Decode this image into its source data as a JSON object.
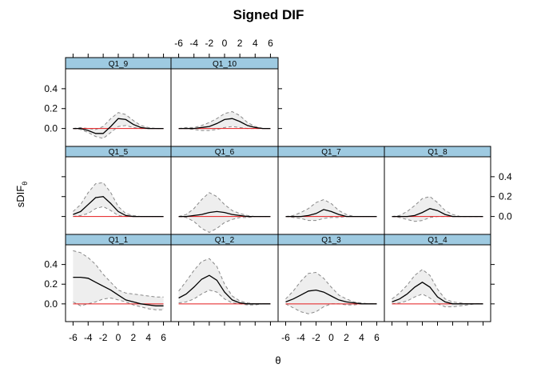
{
  "chart_data": {
    "type": "line",
    "title": "Signed DIF",
    "xlabel": "θ",
    "ylabel": "sDIF",
    "ylabel_subscript": "θ",
    "xlim": [
      -7,
      7
    ],
    "ylim": [
      -0.18,
      0.6
    ],
    "x_ticks": [
      "-6",
      "-4",
      "-2",
      "0",
      "2",
      "4",
      "6"
    ],
    "y_ticks": [
      "0.0",
      "0.2",
      "0.4"
    ],
    "colors": {
      "strip": "#9ECAE1",
      "band": "#EEEEEE",
      "band_line": "#888888",
      "curve": "#000000",
      "zero_line": "#E41A1C"
    },
    "layout": {
      "rows": 3,
      "cols": 4,
      "empty_panels": [
        "top-row col 3",
        "top-row col 4"
      ]
    },
    "panels": [
      {
        "name": "Q1_9",
        "row": 0,
        "col": 0,
        "x": [
          -6,
          -5,
          -4,
          -3,
          -2,
          -1,
          0,
          1,
          2,
          3,
          4,
          5,
          6
        ],
        "values": [
          0.0,
          0.0,
          -0.02,
          -0.05,
          -0.05,
          0.02,
          0.1,
          0.09,
          0.04,
          0.01,
          0.0,
          0.0,
          0.0
        ],
        "lower": [
          0.0,
          -0.01,
          -0.04,
          -0.08,
          -0.1,
          -0.04,
          0.02,
          0.03,
          0.01,
          0.0,
          0.0,
          0.0,
          0.0
        ],
        "upper": [
          0.0,
          0.01,
          0.0,
          -0.01,
          0.02,
          0.1,
          0.16,
          0.14,
          0.08,
          0.03,
          0.01,
          0.0,
          0.0
        ]
      },
      {
        "name": "Q1_10",
        "row": 0,
        "col": 1,
        "x": [
          -6,
          -5,
          -4,
          -3,
          -2,
          -1,
          0,
          1,
          2,
          3,
          4,
          5,
          6
        ],
        "values": [
          0.0,
          0.0,
          0.0,
          0.01,
          0.02,
          0.05,
          0.09,
          0.1,
          0.07,
          0.03,
          0.01,
          0.0,
          0.0
        ],
        "lower": [
          0.0,
          0.0,
          -0.01,
          -0.02,
          -0.02,
          -0.01,
          0.01,
          0.02,
          0.01,
          0.0,
          0.0,
          0.0,
          0.0
        ],
        "upper": [
          0.0,
          0.01,
          0.01,
          0.03,
          0.06,
          0.1,
          0.15,
          0.17,
          0.13,
          0.06,
          0.02,
          0.0,
          0.0
        ]
      },
      {
        "name": "Q1_5",
        "row": 1,
        "col": 0,
        "x": [
          -6,
          -5,
          -4,
          -3,
          -2,
          -1,
          0,
          1,
          2,
          3,
          4,
          5,
          6
        ],
        "values": [
          0.02,
          0.05,
          0.12,
          0.19,
          0.2,
          0.13,
          0.05,
          0.01,
          0.0,
          0.0,
          0.0,
          0.0,
          0.0
        ],
        "lower": [
          0.0,
          0.01,
          0.03,
          0.08,
          0.1,
          0.06,
          0.01,
          0.0,
          0.0,
          0.0,
          0.0,
          0.0,
          0.0
        ],
        "upper": [
          0.05,
          0.12,
          0.24,
          0.33,
          0.34,
          0.24,
          0.1,
          0.03,
          0.01,
          0.0,
          0.0,
          0.0,
          0.0
        ]
      },
      {
        "name": "Q1_6",
        "row": 1,
        "col": 1,
        "x": [
          -6,
          -5,
          -4,
          -3,
          -2,
          -1,
          0,
          1,
          2,
          3,
          4,
          5,
          6
        ],
        "values": [
          0.0,
          0.0,
          0.01,
          0.02,
          0.04,
          0.05,
          0.04,
          0.02,
          0.01,
          0.0,
          0.0,
          0.0,
          0.0
        ],
        "lower": [
          0.0,
          -0.01,
          -0.05,
          -0.12,
          -0.16,
          -0.12,
          -0.06,
          -0.03,
          -0.01,
          -0.01,
          0.0,
          0.0,
          0.0
        ],
        "upper": [
          0.0,
          0.02,
          0.08,
          0.17,
          0.24,
          0.2,
          0.12,
          0.06,
          0.03,
          0.01,
          0.0,
          0.0,
          0.0
        ]
      },
      {
        "name": "Q1_7",
        "row": 1,
        "col": 2,
        "x": [
          -6,
          -5,
          -4,
          -3,
          -2,
          -1,
          0,
          1,
          2,
          3,
          4,
          5,
          6
        ],
        "values": [
          0.0,
          0.0,
          0.0,
          0.01,
          0.03,
          0.07,
          0.05,
          0.02,
          0.0,
          0.0,
          0.0,
          0.0,
          0.0
        ],
        "lower": [
          0.0,
          -0.01,
          -0.02,
          -0.04,
          -0.04,
          -0.02,
          -0.01,
          -0.01,
          0.0,
          0.0,
          0.0,
          0.0,
          0.0
        ],
        "upper": [
          0.0,
          0.01,
          0.04,
          0.08,
          0.14,
          0.17,
          0.13,
          0.06,
          0.02,
          0.0,
          0.0,
          0.0,
          0.0
        ]
      },
      {
        "name": "Q1_8",
        "row": 1,
        "col": 3,
        "x": [
          -6,
          -5,
          -4,
          -3,
          -2,
          -1,
          0,
          1,
          2,
          3,
          4,
          5,
          6
        ],
        "values": [
          0.0,
          0.0,
          0.0,
          0.01,
          0.04,
          0.08,
          0.06,
          0.02,
          0.0,
          0.0,
          0.0,
          0.0,
          0.0
        ],
        "lower": [
          0.0,
          -0.01,
          -0.03,
          -0.05,
          -0.04,
          -0.01,
          0.0,
          0.0,
          0.0,
          0.0,
          0.0,
          0.0,
          0.0
        ],
        "upper": [
          0.0,
          0.01,
          0.05,
          0.11,
          0.18,
          0.2,
          0.14,
          0.06,
          0.02,
          0.0,
          0.0,
          0.0,
          0.0
        ]
      },
      {
        "name": "Q1_1",
        "row": 2,
        "col": 0,
        "x": [
          -6,
          -5,
          -4,
          -3,
          -2,
          -1,
          0,
          1,
          2,
          3,
          4,
          5,
          6
        ],
        "values": [
          0.27,
          0.27,
          0.26,
          0.22,
          0.18,
          0.14,
          0.09,
          0.04,
          0.02,
          0.0,
          -0.01,
          -0.02,
          -0.02
        ],
        "lower": [
          0.02,
          -0.02,
          0.0,
          0.02,
          0.05,
          0.06,
          0.04,
          0.02,
          -0.01,
          -0.03,
          -0.05,
          -0.06,
          -0.06
        ],
        "upper": [
          0.54,
          0.52,
          0.47,
          0.4,
          0.3,
          0.22,
          0.14,
          0.11,
          0.1,
          0.09,
          0.08,
          0.07,
          0.07
        ]
      },
      {
        "name": "Q1_2",
        "row": 2,
        "col": 1,
        "x": [
          -6,
          -5,
          -4,
          -3,
          -2,
          -1,
          0,
          1,
          2,
          3,
          4,
          5,
          6
        ],
        "values": [
          0.06,
          0.1,
          0.17,
          0.25,
          0.29,
          0.24,
          0.12,
          0.04,
          0.01,
          0.0,
          0.0,
          0.0,
          0.0
        ],
        "lower": [
          0.01,
          0.02,
          0.05,
          0.1,
          0.14,
          0.12,
          0.05,
          0.01,
          0.0,
          -0.01,
          -0.01,
          0.0,
          0.0
        ],
        "upper": [
          0.13,
          0.23,
          0.34,
          0.43,
          0.46,
          0.38,
          0.2,
          0.08,
          0.03,
          0.01,
          0.0,
          0.0,
          0.0
        ]
      },
      {
        "name": "Q1_3",
        "row": 2,
        "col": 2,
        "x": [
          -6,
          -5,
          -4,
          -3,
          -2,
          -1,
          0,
          1,
          2,
          3,
          4,
          5,
          6
        ],
        "values": [
          0.02,
          0.05,
          0.09,
          0.13,
          0.14,
          0.12,
          0.08,
          0.04,
          0.02,
          0.01,
          0.0,
          0.0,
          0.0
        ],
        "lower": [
          0.0,
          -0.04,
          -0.08,
          -0.1,
          -0.08,
          -0.03,
          0.0,
          0.0,
          -0.01,
          -0.01,
          0.0,
          0.0,
          0.0
        ],
        "upper": [
          0.05,
          0.13,
          0.23,
          0.31,
          0.32,
          0.26,
          0.17,
          0.09,
          0.05,
          0.02,
          0.01,
          0.0,
          0.0
        ]
      },
      {
        "name": "Q1_4",
        "row": 2,
        "col": 3,
        "x": [
          -6,
          -5,
          -4,
          -3,
          -2,
          -1,
          0,
          1,
          2,
          3,
          4,
          5,
          6
        ],
        "values": [
          0.02,
          0.05,
          0.1,
          0.17,
          0.22,
          0.17,
          0.07,
          0.02,
          0.0,
          0.0,
          0.0,
          0.0,
          0.0
        ],
        "lower": [
          0.0,
          0.01,
          0.03,
          0.07,
          0.1,
          0.06,
          0.0,
          -0.03,
          -0.03,
          -0.02,
          -0.01,
          0.0,
          0.0
        ],
        "upper": [
          0.05,
          0.11,
          0.19,
          0.29,
          0.35,
          0.29,
          0.15,
          0.05,
          0.02,
          0.01,
          0.0,
          0.0,
          0.0
        ]
      }
    ]
  }
}
